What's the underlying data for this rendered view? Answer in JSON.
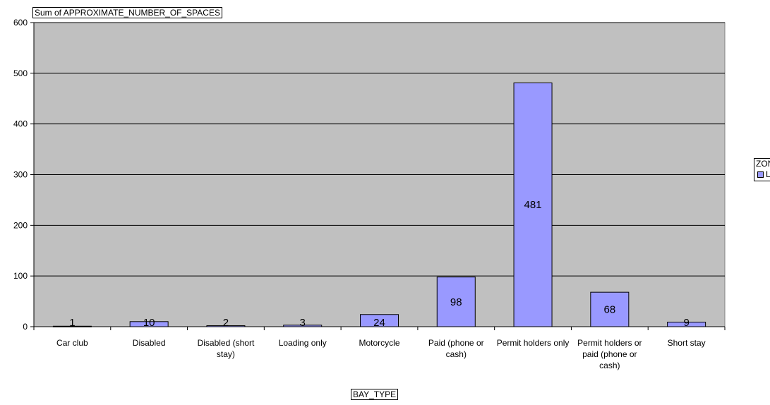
{
  "chart_data": {
    "type": "bar",
    "title": "Sum of APPROXIMATE_NUMBER_OF_SPACES",
    "xlabel": "BAY_TYPE",
    "ylabel": "",
    "categories": [
      "Car club",
      "Disabled",
      "Disabled (short stay)",
      "Loading only",
      "Motorcycle",
      "Paid (phone or cash)",
      "Permit holders only",
      "Permit holders or paid (phone or cash)",
      "Short stay"
    ],
    "series": [
      {
        "name": "L",
        "values": [
          1,
          10,
          2,
          3,
          24,
          98,
          481,
          68,
          9
        ]
      }
    ],
    "data_labels": [
      "1",
      "10",
      "2",
      "3",
      "24",
      "98",
      "481",
      "68",
      "9"
    ],
    "ylim": [
      0,
      600
    ],
    "yticks": [
      0,
      100,
      200,
      300,
      400,
      500,
      600
    ],
    "ytick_labels": [
      "0",
      "100",
      "200",
      "300",
      "400",
      "500",
      "600"
    ],
    "legend": {
      "title": "ZONE",
      "placement": "right"
    },
    "grid": true,
    "colors": {
      "plot_bg": "#c0c0c0",
      "bar": "#9999ff",
      "bar_border": "#000000",
      "gridline": "#000000"
    }
  }
}
